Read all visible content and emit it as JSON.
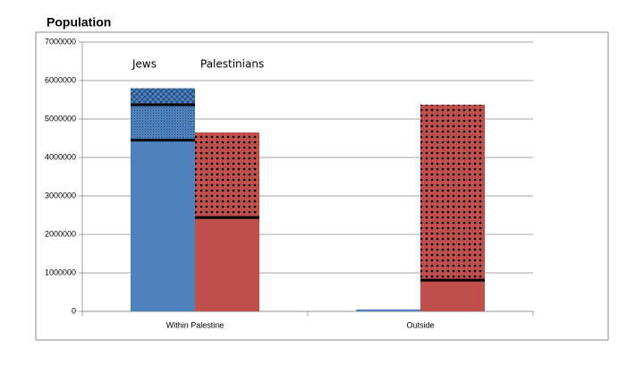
{
  "chart_data": {
    "type": "stacked-bar",
    "title": "Population",
    "categories": [
      "Within Palestine",
      "Outside"
    ],
    "series": [
      {
        "name": "Jews",
        "color": "#4f81bd",
        "segments": [
          {
            "pattern": "solid",
            "values": [
              4450000,
              50000
            ]
          },
          {
            "pattern": "grid",
            "values": [
              920000,
              null
            ]
          },
          {
            "pattern": "crosshatch",
            "values": [
              430000,
              null
            ]
          }
        ]
      },
      {
        "name": "Palestinians",
        "color": "#c0504d",
        "segments": [
          {
            "pattern": "solid",
            "values": [
              2440000,
              810000
            ]
          },
          {
            "pattern": "dots",
            "values": [
              2210000,
              4560000
            ]
          }
        ]
      }
    ],
    "ylim": [
      0,
      7000000
    ],
    "yticks": [
      0,
      1000000,
      2000000,
      3000000,
      4000000,
      5000000,
      6000000,
      7000000
    ],
    "grid": true
  }
}
